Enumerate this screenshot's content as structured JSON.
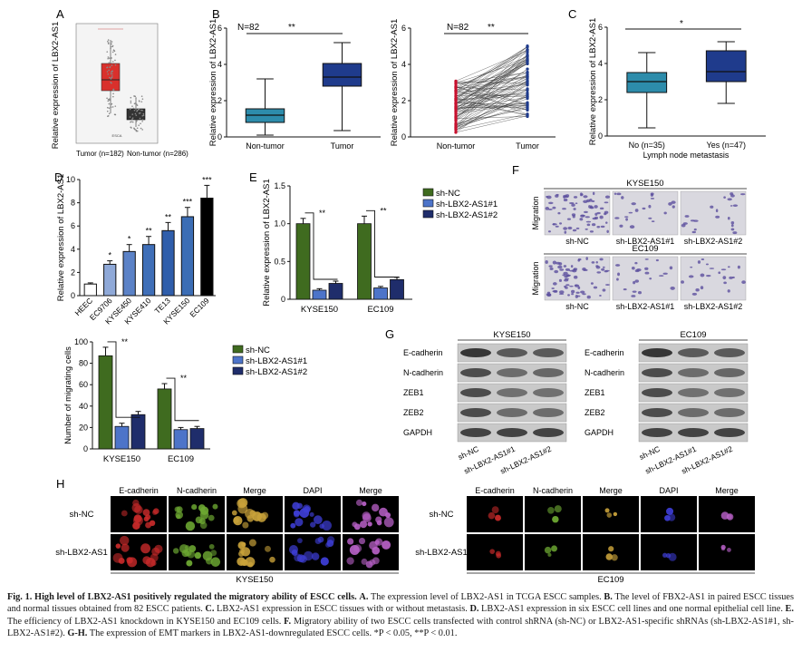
{
  "panels": {
    "A": {
      "letter": "A",
      "ylabel": "Relative expression of LBX2-AS1",
      "groups": [
        "Tumor (n=182)",
        "Non-tumor (n=286)"
      ],
      "inset_caption": "ESCA"
    },
    "B": {
      "letter": "B",
      "left": {
        "ylabel": "Relative expression of LBX2-AS1",
        "n_label": "N=82",
        "sig": "**",
        "categories": [
          "Non-tumor",
          "Tumor"
        ]
      },
      "right": {
        "ylabel": "Relative expression of LBX2-AS1",
        "n_label": "N=82",
        "sig": "**",
        "categories": [
          "Non-tumor",
          "Tumor"
        ]
      }
    },
    "C": {
      "letter": "C",
      "ylabel": "Relative expression of LBX2-AS1",
      "sig": "*",
      "categories": [
        "No (n=35)",
        "Yes (n=47)"
      ],
      "xlabel": "Lymph node metastasis"
    },
    "D": {
      "letter": "D",
      "ylabel": "Relative expression of LBX2-AS1",
      "categories": [
        "HEEC",
        "EC9706",
        "KYSE450",
        "KYSE410",
        "TE13",
        "KYSE150",
        "EC109"
      ],
      "sig": [
        "",
        "*",
        "*",
        "**",
        "**",
        "***",
        "***"
      ]
    },
    "E": {
      "letter": "E",
      "ylabel": "Relative expression of LBX2-AS1",
      "categories": [
        "KYSE150",
        "EC109"
      ],
      "legend": [
        "sh-NC",
        "sh-LBX2-AS1#1",
        "sh-LBX2-AS1#2"
      ],
      "sig": [
        "**",
        "**"
      ]
    },
    "F": {
      "letter": "F",
      "cell_lines": [
        "KYSE150",
        "EC109"
      ],
      "row_label": "Migration",
      "conditions": [
        "sh-NC",
        "sh-LBX2-AS1#1",
        "sh-LBX2-AS1#2"
      ]
    },
    "Fbar": {
      "ylabel": "Number of migrating cells",
      "categories": [
        "KYSE150",
        "EC109"
      ],
      "legend": [
        "sh-NC",
        "sh-LBX2-AS1#1",
        "sh-LBX2-AS1#2"
      ],
      "sig": [
        "**",
        "**"
      ]
    },
    "G": {
      "letter": "G",
      "cell_lines": [
        "KYSE150",
        "EC109"
      ],
      "proteins": [
        "E-cadherin",
        "N-cadherin",
        "ZEB1",
        "ZEB2",
        "GAPDH"
      ],
      "lanes": [
        "sh-NC",
        "sh-LBX2-AS1#1",
        "sh-LBX2-AS1#2"
      ]
    },
    "H": {
      "letter": "H",
      "channels": [
        "E-cadherin",
        "N-cadherin",
        "Merge",
        "DAPI",
        "Merge"
      ],
      "rows": [
        "sh-NC",
        "sh-LBX2-AS1"
      ],
      "cell_lines": [
        "KYSE150",
        "EC109"
      ]
    }
  },
  "chart_data": [
    {
      "type": "box",
      "panel": "B-left",
      "categories": [
        "Non-tumor",
        "Tumor"
      ],
      "boxes": [
        {
          "min": 0.1,
          "q1": 0.8,
          "median": 1.2,
          "q3": 1.55,
          "max": 3.2
        },
        {
          "min": 0.35,
          "q1": 2.8,
          "median": 3.3,
          "q3": 4.05,
          "max": 5.2
        }
      ],
      "ylim": [
        0,
        6
      ],
      "yticks": [
        0,
        2,
        4,
        6
      ],
      "colors": [
        "#2d8cab",
        "#1f3b8c"
      ]
    },
    {
      "type": "paired-line",
      "panel": "B-right",
      "categories": [
        "Non-tumor",
        "Tumor"
      ],
      "ylim": [
        0,
        6
      ],
      "yticks": [
        0,
        2,
        4,
        6
      ],
      "colors": [
        "#c8102e",
        "#1f3b8c"
      ]
    },
    {
      "type": "box",
      "panel": "C",
      "categories": [
        "No (n=35)",
        "Yes (n=47)"
      ],
      "boxes": [
        {
          "min": 0.45,
          "q1": 2.4,
          "median": 3.0,
          "q3": 3.5,
          "max": 4.6
        },
        {
          "min": 1.8,
          "q1": 3.0,
          "median": 3.55,
          "q3": 4.7,
          "max": 5.2
        }
      ],
      "ylim": [
        0,
        6
      ],
      "yticks": [
        0,
        2,
        4,
        6
      ],
      "colors": [
        "#2d8cab",
        "#1f3b8c"
      ]
    },
    {
      "type": "bar",
      "panel": "D",
      "categories": [
        "HEEC",
        "EC9706",
        "KYSE450",
        "KYSE410",
        "TE13",
        "KYSE150",
        "EC109"
      ],
      "values": [
        1.0,
        2.7,
        3.8,
        4.4,
        5.6,
        6.8,
        8.4
      ],
      "errors": [
        0.1,
        0.3,
        0.6,
        0.7,
        0.7,
        0.8,
        1.1
      ],
      "ylim": [
        0,
        10
      ],
      "yticks": [
        0,
        2,
        4,
        6,
        8,
        10
      ],
      "colors": [
        "#ffffff",
        "#8fa9d8",
        "#5b82c7",
        "#3f6fb8",
        "#2f5eab",
        "#3b6db5",
        "#000000"
      ]
    },
    {
      "type": "grouped-bar",
      "panel": "E",
      "categories": [
        "KYSE150",
        "EC109"
      ],
      "series": [
        {
          "name": "sh-NC",
          "values": [
            1.0,
            1.0
          ],
          "errors": [
            0.07,
            0.1
          ],
          "color": "#3f6b1f"
        },
        {
          "name": "sh-LBX2-AS1#1",
          "values": [
            0.12,
            0.15
          ],
          "errors": [
            0.02,
            0.02
          ],
          "color": "#4d74c9"
        },
        {
          "name": "sh-LBX2-AS1#2",
          "values": [
            0.21,
            0.26
          ],
          "errors": [
            0.03,
            0.03
          ],
          "color": "#1f2d6b"
        }
      ],
      "ylim": [
        0,
        1.5
      ],
      "yticks": [
        0,
        0.5,
        1.0,
        1.5
      ]
    },
    {
      "type": "grouped-bar",
      "panel": "F-bar",
      "categories": [
        "KYSE150",
        "EC109"
      ],
      "series": [
        {
          "name": "sh-NC",
          "values": [
            87,
            56
          ],
          "errors": [
            8,
            5
          ],
          "color": "#3f6b1f"
        },
        {
          "name": "sh-LBX2-AS1#1",
          "values": [
            21,
            18
          ],
          "errors": [
            3,
            2
          ],
          "color": "#4d74c9"
        },
        {
          "name": "sh-LBX2-AS1#2",
          "values": [
            32,
            19
          ],
          "errors": [
            3,
            2
          ],
          "color": "#1f2d6b"
        }
      ],
      "ylim": [
        0,
        100
      ],
      "yticks": [
        0,
        20,
        40,
        60,
        80,
        100
      ]
    }
  ],
  "caption": {
    "title": "Fig. 1. High level of LBX2-AS1 positively regulated the migratory ability of ESCC cells.",
    "sentences": [
      {
        "label": "A.",
        "text": " The expression level of LBX2-AS1 in TCGA ESCC samples. "
      },
      {
        "label": "B.",
        "text": " The level of FBX2-AS1 in paired ESCC tissues and normal tissues obtained from 82 ESCC patients. "
      },
      {
        "label": "C.",
        "text": " LBX2-AS1 expression in ESCC tissues with or without metastasis. "
      },
      {
        "label": "D.",
        "text": " LBX2-AS1 expression in six ESCC cell lines and one normal epithelial cell line. "
      },
      {
        "label": "E.",
        "text": " The efficiency of LBX2-AS1 knockdown in KYSE150 and EC109 cells. "
      },
      {
        "label": "F.",
        "text": " Migratory ability of two ESCC cells transfected with control shRNA (sh-NC) or LBX2-AS1-specific shRNAs (sh-LBX2-AS1#1, sh-LBX2-AS1#2). "
      },
      {
        "label": "G-H.",
        "text": " The expression of EMT markers in LBX2-AS1-downregulated ESCC cells. "
      }
    ],
    "sig_note": "*P < 0.05, **P < 0.01."
  }
}
